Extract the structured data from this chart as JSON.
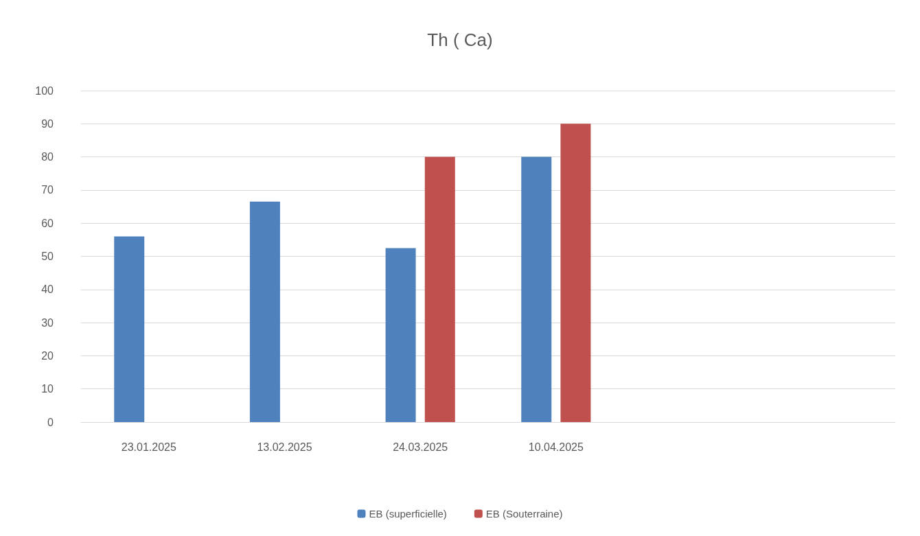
{
  "chart_data": {
    "type": "bar",
    "title": "Th ( Ca)",
    "categories": [
      "23.01.2025",
      "13.02.2025",
      "24.03.2025",
      "10.04.2025",
      null,
      null
    ],
    "series": [
      {
        "name": "EB (superficielle)",
        "color": "#4f81bd",
        "values": [
          56,
          66.5,
          52.5,
          80,
          null,
          null
        ]
      },
      {
        "name": "EB (Souterraine)",
        "color": "#c0504d",
        "values": [
          null,
          null,
          80,
          90,
          null,
          null
        ]
      }
    ],
    "ylim": [
      0,
      100
    ],
    "yticks": [
      0,
      10,
      20,
      30,
      40,
      50,
      60,
      70,
      80,
      90,
      100
    ],
    "grid": "y",
    "legend": "bottom"
  }
}
